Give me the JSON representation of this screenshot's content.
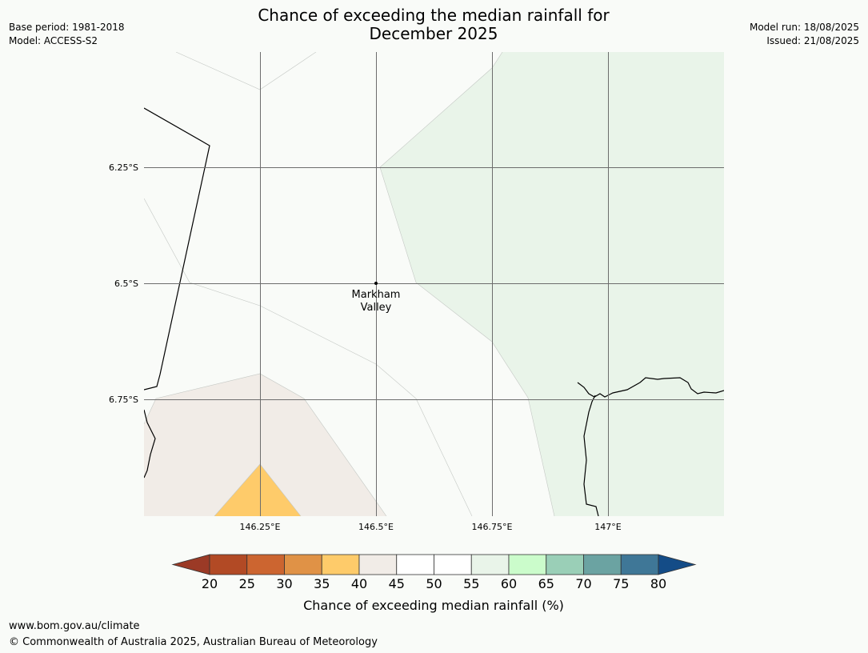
{
  "title_line1": "Chance of exceeding the median rainfall for",
  "title_line2": "December 2025",
  "meta_left": {
    "base_period": "Base period: 1981-2018",
    "model": "Model: ACCESS-S2"
  },
  "meta_right": {
    "model_run": "Model run: 18/08/2025",
    "issued": "Issued: 21/08/2025"
  },
  "map": {
    "lat_labels": [
      "6.25°S",
      "6.5°S",
      "6.75°S"
    ],
    "lon_labels": [
      "146.25°E",
      "146.5°E",
      "146.75°E",
      "147°E"
    ],
    "place": {
      "line1": "Markham",
      "line2": "Valley"
    }
  },
  "colorbar": {
    "ticks": [
      "20",
      "25",
      "30",
      "35",
      "40",
      "45",
      "50",
      "55",
      "60",
      "65",
      "70",
      "75",
      "80"
    ],
    "colors": [
      "#9b3a26",
      "#b24a25",
      "#cc6530",
      "#e09246",
      "#fecb6a",
      "#f1ece7",
      "#ffffff",
      "#ffffff",
      "#e9f4e9",
      "#cbfccb",
      "#9acfb7",
      "#6ba3a2",
      "#3f7797",
      "#144c87"
    ],
    "label": "Chance of exceeding median rainfall (%)"
  },
  "footer": {
    "url": "www.bom.gov.au/climate",
    "copyright": "© Commonwealth of Australia 2025, Australian Bureau of Meteorology"
  }
}
